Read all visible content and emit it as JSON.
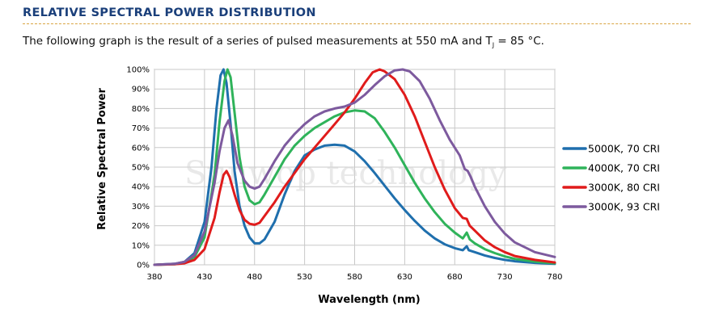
{
  "header": {
    "title": "RELATIVE SPECTRAL POWER DISTRIBUTION",
    "caption_before": "The following graph is the result of a series of pulsed measurements at 550 mA and T",
    "caption_sub": "J",
    "caption_after": " = 85 °C."
  },
  "watermark": "Sunwop technology",
  "colors": {
    "series_5000K": "#1f6fad",
    "series_4000K": "#2fb35a",
    "series_3000K_80": "#e01b1b",
    "series_3000K_93": "#7d5a9e",
    "title": "#1a3f7a",
    "rule": "#d9a441"
  },
  "chart_data": {
    "type": "line",
    "title": "",
    "xlabel": "Wavelength (nm)",
    "ylabel": "Relative Spectral Power",
    "xlim": [
      380,
      780
    ],
    "ylim": [
      0,
      100
    ],
    "x_ticks": [
      "380",
      "430",
      "480",
      "530",
      "580",
      "630",
      "680",
      "730",
      "780"
    ],
    "y_ticks": [
      "0%",
      "10%",
      "20%",
      "30%",
      "40%",
      "50%",
      "60%",
      "70%",
      "80%",
      "90%",
      "100%"
    ],
    "grid": true,
    "legend_position": "right",
    "series": [
      {
        "name": "5000K, 70 CRI",
        "color": "#1f6fad",
        "points": [
          [
            380,
            0
          ],
          [
            400,
            0.5
          ],
          [
            410,
            1.5
          ],
          [
            420,
            6
          ],
          [
            430,
            22
          ],
          [
            437,
            50
          ],
          [
            442,
            80
          ],
          [
            446,
            97
          ],
          [
            449,
            100
          ],
          [
            452,
            93
          ],
          [
            456,
            72
          ],
          [
            460,
            48
          ],
          [
            465,
            30
          ],
          [
            470,
            20
          ],
          [
            475,
            14
          ],
          [
            480,
            11
          ],
          [
            485,
            11
          ],
          [
            490,
            13
          ],
          [
            500,
            22
          ],
          [
            510,
            36
          ],
          [
            520,
            48
          ],
          [
            530,
            56
          ],
          [
            540,
            59
          ],
          [
            550,
            61
          ],
          [
            560,
            61.5
          ],
          [
            570,
            61
          ],
          [
            580,
            58
          ],
          [
            590,
            53
          ],
          [
            600,
            47
          ],
          [
            610,
            40.5
          ],
          [
            620,
            34
          ],
          [
            630,
            28
          ],
          [
            640,
            22.5
          ],
          [
            650,
            17.5
          ],
          [
            660,
            13.5
          ],
          [
            670,
            10.5
          ],
          [
            680,
            8.5
          ],
          [
            688,
            7.5
          ],
          [
            692,
            9.5
          ],
          [
            694,
            7.5
          ],
          [
            700,
            6.5
          ],
          [
            710,
            4.8
          ],
          [
            720,
            3.5
          ],
          [
            730,
            2.5
          ],
          [
            740,
            1.8
          ],
          [
            760,
            1
          ],
          [
            780,
            0.5
          ]
        ]
      },
      {
        "name": "4000K, 70 CRI",
        "color": "#2fb35a",
        "points": [
          [
            380,
            0
          ],
          [
            400,
            0.3
          ],
          [
            410,
            1
          ],
          [
            420,
            4
          ],
          [
            430,
            14
          ],
          [
            440,
            46
          ],
          [
            445,
            73
          ],
          [
            450,
            94
          ],
          [
            453,
            100
          ],
          [
            456,
            96
          ],
          [
            460,
            78
          ],
          [
            465,
            55
          ],
          [
            470,
            40
          ],
          [
            475,
            33
          ],
          [
            480,
            31
          ],
          [
            485,
            32
          ],
          [
            490,
            36
          ],
          [
            500,
            45
          ],
          [
            510,
            54
          ],
          [
            520,
            61
          ],
          [
            530,
            66
          ],
          [
            540,
            70
          ],
          [
            550,
            73
          ],
          [
            560,
            76
          ],
          [
            570,
            78
          ],
          [
            580,
            79
          ],
          [
            590,
            78.5
          ],
          [
            600,
            75
          ],
          [
            610,
            68
          ],
          [
            620,
            60
          ],
          [
            630,
            51
          ],
          [
            640,
            42
          ],
          [
            650,
            34
          ],
          [
            660,
            27
          ],
          [
            670,
            21
          ],
          [
            680,
            16.5
          ],
          [
            688,
            13.5
          ],
          [
            692,
            16.5
          ],
          [
            695,
            13
          ],
          [
            700,
            11
          ],
          [
            710,
            8
          ],
          [
            720,
            6
          ],
          [
            730,
            4.3
          ],
          [
            740,
            3
          ],
          [
            760,
            1.6
          ],
          [
            780,
            0.8
          ]
        ]
      },
      {
        "name": "3000K, 80 CRI",
        "color": "#e01b1b",
        "points": [
          [
            380,
            0
          ],
          [
            400,
            0.3
          ],
          [
            410,
            0.8
          ],
          [
            420,
            2.5
          ],
          [
            430,
            8
          ],
          [
            440,
            24
          ],
          [
            445,
            37
          ],
          [
            449,
            46
          ],
          [
            452,
            48
          ],
          [
            455,
            45
          ],
          [
            460,
            36
          ],
          [
            465,
            28
          ],
          [
            470,
            23
          ],
          [
            475,
            21
          ],
          [
            480,
            20.5
          ],
          [
            485,
            21.5
          ],
          [
            490,
            25
          ],
          [
            500,
            32
          ],
          [
            510,
            40
          ],
          [
            520,
            47
          ],
          [
            530,
            54
          ],
          [
            540,
            60
          ],
          [
            550,
            66
          ],
          [
            560,
            72
          ],
          [
            570,
            78
          ],
          [
            580,
            85
          ],
          [
            590,
            93
          ],
          [
            598,
            98.5
          ],
          [
            605,
            100
          ],
          [
            610,
            99
          ],
          [
            620,
            95
          ],
          [
            630,
            87
          ],
          [
            640,
            76
          ],
          [
            650,
            63
          ],
          [
            660,
            50
          ],
          [
            670,
            38.5
          ],
          [
            680,
            29
          ],
          [
            688,
            24
          ],
          [
            692,
            23.5
          ],
          [
            695,
            20
          ],
          [
            700,
            17.5
          ],
          [
            710,
            12.5
          ],
          [
            720,
            9
          ],
          [
            730,
            6.5
          ],
          [
            740,
            4.5
          ],
          [
            760,
            2.5
          ],
          [
            780,
            1.2
          ]
        ]
      },
      {
        "name": "3000K, 93 CRI",
        "color": "#7d5a9e",
        "points": [
          [
            380,
            0
          ],
          [
            400,
            0.5
          ],
          [
            410,
            1.5
          ],
          [
            420,
            5
          ],
          [
            430,
            17
          ],
          [
            440,
            42
          ],
          [
            445,
            58
          ],
          [
            450,
            70
          ],
          [
            454,
            74
          ],
          [
            458,
            66
          ],
          [
            463,
            52
          ],
          [
            470,
            43
          ],
          [
            475,
            40
          ],
          [
            480,
            39
          ],
          [
            485,
            40
          ],
          [
            490,
            44
          ],
          [
            500,
            53
          ],
          [
            510,
            61
          ],
          [
            520,
            67
          ],
          [
            530,
            72
          ],
          [
            540,
            76
          ],
          [
            550,
            78.5
          ],
          [
            560,
            80
          ],
          [
            570,
            81
          ],
          [
            580,
            83
          ],
          [
            590,
            87
          ],
          [
            600,
            92
          ],
          [
            610,
            96.5
          ],
          [
            620,
            99.5
          ],
          [
            628,
            100
          ],
          [
            635,
            99
          ],
          [
            645,
            94
          ],
          [
            655,
            85
          ],
          [
            665,
            74
          ],
          [
            675,
            64
          ],
          [
            685,
            56
          ],
          [
            690,
            49
          ],
          [
            693,
            48
          ],
          [
            696,
            45
          ],
          [
            700,
            40
          ],
          [
            710,
            30
          ],
          [
            720,
            22
          ],
          [
            730,
            16
          ],
          [
            740,
            11.5
          ],
          [
            760,
            6.5
          ],
          [
            780,
            4
          ]
        ]
      }
    ]
  }
}
